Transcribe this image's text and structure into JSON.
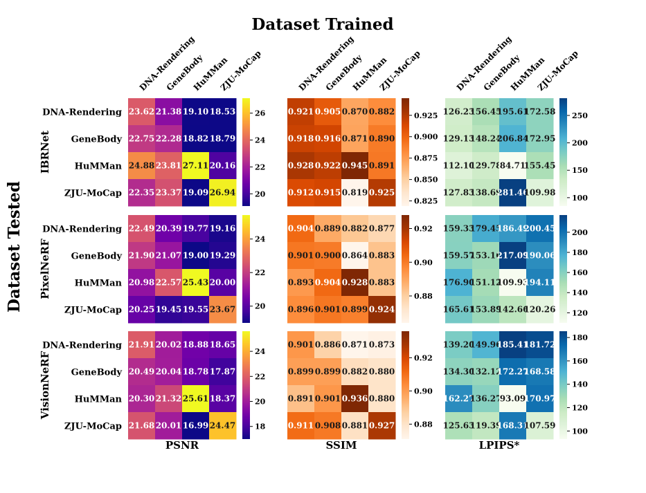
{
  "chart_data": {
    "type": "heatmap",
    "x_title": "Dataset Trained",
    "y_title": "Dataset Tested",
    "datasets": [
      "DNA-Rendering",
      "GeneBody",
      "HuMMan",
      "ZJU-MoCap"
    ],
    "methods": [
      "IBRNet",
      "PixelNeRF",
      "VisionNeRF"
    ],
    "metrics": [
      {
        "name": "PSNR",
        "colormap": "plasma",
        "decimals": 2,
        "vrange": [
          [
            19.09,
            27.11
          ],
          [
            19.0,
            25.43
          ],
          [
            16.99,
            25.61
          ]
        ],
        "ticks": [
          [
            "20",
            "22",
            "24",
            "26"
          ],
          [
            "20",
            "22",
            "24"
          ],
          [
            "18",
            "20",
            "22",
            "24"
          ]
        ],
        "values": [
          [
            [
              23.62,
              21.38,
              19.1,
              18.53
            ],
            [
              22.75,
              22.28,
              18.82,
              18.79
            ],
            [
              24.88,
              23.81,
              27.11,
              20.16
            ],
            [
              22.35,
              23.37,
              19.09,
              26.94
            ]
          ],
          [
            [
              22.49,
              20.39,
              19.77,
              19.16
            ],
            [
              21.9,
              21.07,
              19.0,
              19.29
            ],
            [
              20.98,
              22.57,
              25.43,
              20.0
            ],
            [
              20.25,
              19.45,
              19.55,
              23.67
            ]
          ],
          [
            [
              21.91,
              20.02,
              18.88,
              18.65
            ],
            [
              20.49,
              20.04,
              18.78,
              17.87
            ],
            [
              20.3,
              21.32,
              25.61,
              18.37
            ],
            [
              21.68,
              20.01,
              16.99,
              24.47
            ]
          ]
        ]
      },
      {
        "name": "SSIM",
        "colormap": "oranges",
        "decimals": 3,
        "vrange": [
          [
            0.819,
            0.945
          ],
          [
            0.864,
            0.928
          ],
          [
            0.871,
            0.936
          ]
        ],
        "ticks": [
          [
            "0.825",
            "0.850",
            "0.875",
            "0.900",
            "0.925"
          ],
          [
            "0.88",
            "0.90",
            "0.92"
          ],
          [
            "0.88",
            "0.90",
            "0.92"
          ]
        ],
        "values": [
          [
            [
              0.921,
              0.905,
              0.87,
              0.882
            ],
            [
              0.918,
              0.916,
              0.871,
              0.89
            ],
            [
              0.928,
              0.922,
              0.945,
              0.891
            ],
            [
              0.912,
              0.915,
              0.819,
              0.925
            ]
          ],
          [
            [
              0.904,
              0.889,
              0.882,
              0.877
            ],
            [
              0.901,
              0.9,
              0.864,
              0.883
            ],
            [
              0.893,
              0.904,
              0.928,
              0.883
            ],
            [
              0.896,
              0.901,
              0.899,
              0.924
            ]
          ],
          [
            [
              0.901,
              0.886,
              0.871,
              0.873
            ],
            [
              0.899,
              0.899,
              0.882,
              0.88
            ],
            [
              0.891,
              0.901,
              0.936,
              0.88
            ],
            [
              0.911,
              0.908,
              0.881,
              0.927
            ]
          ]
        ]
      },
      {
        "name": "LPIPS*",
        "colormap": "gnbu",
        "decimals": 2,
        "vrange": [
          [
            84.71,
            281.46
          ],
          [
            109.93,
            217.09
          ],
          [
            93.09,
            185.41
          ]
        ],
        "ticks": [
          [
            "100",
            "150",
            "200",
            "250"
          ],
          [
            "120",
            "140",
            "160",
            "180",
            "200"
          ],
          [
            "100",
            "120",
            "140",
            "160",
            "180"
          ]
        ],
        "values": [
          [
            [
              126.23,
              156.45,
              195.61,
              172.58
            ],
            [
              129.13,
              148.24,
              206.84,
              172.95
            ],
            [
              112.1,
              129.78,
              84.71,
              155.45
            ],
            [
              127.83,
              138.69,
              281.46,
              109.98
            ]
          ],
          [
            [
              159.33,
              179.45,
              186.49,
              200.45
            ],
            [
              159.57,
              153.16,
              217.09,
              190.06
            ],
            [
              176.9,
              151.12,
              109.93,
              194.11
            ],
            [
              165.61,
              153.89,
              142.66,
              120.26
            ]
          ],
          [
            [
              139.2,
              149.96,
              185.41,
              181.72
            ],
            [
              134.3,
              132.12,
              172.27,
              168.58
            ],
            [
              162.27,
              136.27,
              93.09,
              170.97
            ],
            [
              125.63,
              119.39,
              168.31,
              107.59
            ]
          ]
        ]
      }
    ]
  }
}
